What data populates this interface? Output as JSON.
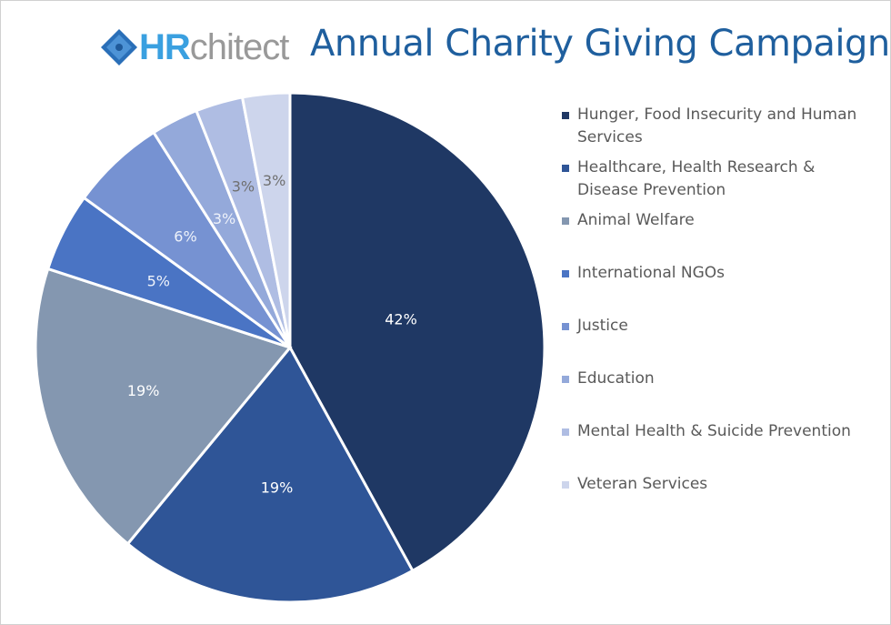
{
  "logo": {
    "text_bold": "HR",
    "text_rest": "chitect"
  },
  "chart_data": {
    "type": "pie",
    "title": "Annual Charity Giving Campaign",
    "legend_position": "right",
    "start": "12 o'clock, clockwise",
    "slices": [
      {
        "label": "Hunger, Food Insecurity and Human Services",
        "value": 42,
        "data_label": "42%",
        "color": "#1f3864",
        "label_color": "#ffffff"
      },
      {
        "label": "Healthcare, Health Research & Disease Prevention",
        "value": 19,
        "data_label": "19%",
        "color": "#2f5597",
        "label_color": "#ffffff"
      },
      {
        "label": "Animal Welfare",
        "value": 19,
        "data_label": "19%",
        "color": "#8497b0",
        "label_color": "#ffffff"
      },
      {
        "label": "International NGOs",
        "value": 5,
        "data_label": "5%",
        "color": "#4a74c4",
        "label_color": "#eef2fa"
      },
      {
        "label": "Justice",
        "value": 6,
        "data_label": "6%",
        "color": "#7692d2",
        "label_color": "#eef2fa"
      },
      {
        "label": "Education",
        "value": 3,
        "data_label": "3%",
        "color": "#94a9da",
        "label_color": "#eef2fa"
      },
      {
        "label": "Mental Health & Suicide Prevention",
        "value": 3,
        "data_label": "3%",
        "color": "#afbde3",
        "label_color": "#707070"
      },
      {
        "label": "Veteran Services",
        "value": 3,
        "data_label": "3%",
        "color": "#cdd5ec",
        "label_color": "#707070"
      }
    ]
  }
}
